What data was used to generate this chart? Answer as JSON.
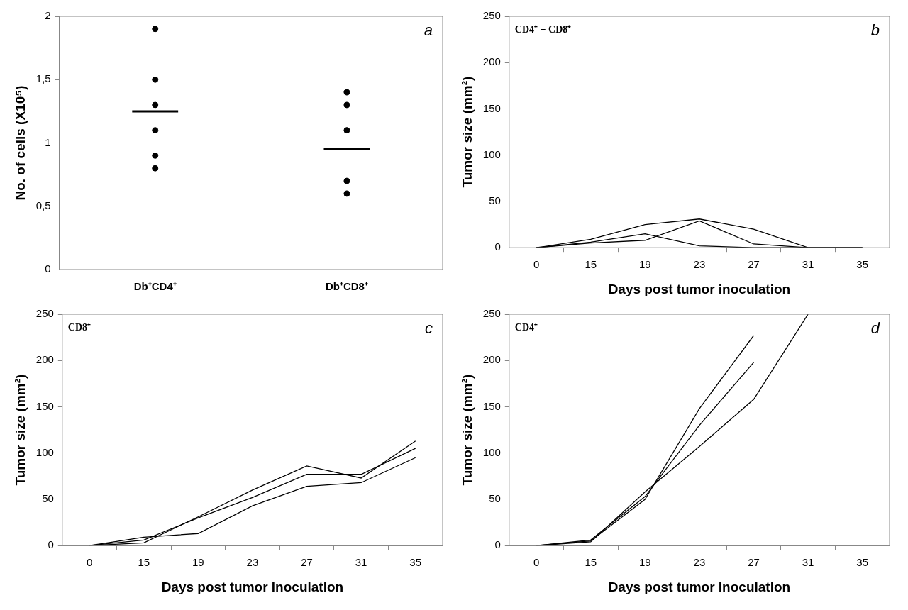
{
  "chart_data": [
    {
      "type": "scatter",
      "ylabel": "No. of cells (X10⁵)",
      "categories": [
        "Db⁺CD4⁺",
        "Db⁺CD8⁺"
      ],
      "ylim": [
        0,
        2
      ],
      "yticks": [
        0,
        {
          "value": 0.5,
          "label": "0,5"
        },
        1,
        {
          "value": 1.5,
          "label": "1,5"
        },
        2
      ],
      "annotations": [
        "a"
      ],
      "series": [
        {
          "type": "scatter",
          "marker": "circle",
          "color": "#000000",
          "x": [
            "Db⁺CD4⁺",
            "Db⁺CD4⁺",
            "Db⁺CD4⁺",
            "Db⁺CD4⁺",
            "Db⁺CD4⁺",
            "Db⁺CD4⁺",
            "Db⁺CD8⁺",
            "Db⁺CD8⁺",
            "Db⁺CD8⁺",
            "Db⁺CD8⁺",
            "Db⁺CD8⁺"
          ],
          "values": [
            1.9,
            1.5,
            1.3,
            1.1,
            0.9,
            0.8,
            1.4,
            1.3,
            1.1,
            0.7,
            0.6
          ]
        }
      ],
      "ref_lines": [
        {
          "axis": "y",
          "value": 1.25,
          "color": "#000000"
        },
        {
          "axis": "y",
          "value": 0.95,
          "color": "#000000"
        }
      ]
    },
    {
      "type": "line",
      "xlabel": "Days post tumor inoculation",
      "ylabel": "Tumor size (mm²)",
      "categories": [
        "0",
        "15",
        "19",
        "23",
        "27",
        "31",
        "35"
      ],
      "ylim": [
        0,
        250
      ],
      "yticks": [
        0,
        50,
        100,
        150,
        200,
        250
      ],
      "annotations": [
        "CD4⁺ + CD8⁺",
        "b"
      ],
      "marker": "none",
      "series": [
        {
          "color": "#000000",
          "values": [
            0,
            9,
            25,
            31,
            20,
            0,
            0
          ]
        },
        {
          "color": "#000000",
          "values": [
            0,
            6,
            15,
            2,
            0,
            0,
            0
          ]
        },
        {
          "color": "#000000",
          "values": [
            0,
            5,
            8,
            29,
            4,
            0,
            0
          ]
        }
      ]
    },
    {
      "type": "line",
      "xlabel": "Days post tumor inoculation",
      "ylabel": "Tumor size (mm²)",
      "categories": [
        "0",
        "15",
        "19",
        "23",
        "27",
        "31",
        "35"
      ],
      "ylim": [
        0,
        250
      ],
      "yticks": [
        0,
        50,
        100,
        150,
        200,
        250
      ],
      "annotations": [
        "CD8⁺",
        "c"
      ],
      "marker": "none",
      "series": [
        {
          "color": "#000000",
          "values": [
            0,
            3,
            31,
            60,
            86,
            73,
            113
          ]
        },
        {
          "color": "#000000",
          "values": [
            0,
            6,
            30,
            52,
            77,
            77,
            105
          ]
        },
        {
          "color": "#000000",
          "values": [
            0,
            9,
            13,
            43,
            64,
            68,
            95
          ]
        }
      ]
    },
    {
      "type": "line",
      "xlabel": "Days post tumor inoculation",
      "ylabel": "Tumor size (mm²)",
      "categories": [
        "0",
        "15",
        "19",
        "23",
        "27",
        "31",
        "35"
      ],
      "ylim": [
        0,
        250
      ],
      "yticks": [
        0,
        50,
        100,
        150,
        200,
        250
      ],
      "annotations": [
        "CD4⁺",
        "d"
      ],
      "marker": "none",
      "series": [
        {
          "color": "#000000",
          "values": [
            0,
            5,
            50,
            148,
            227,
            null,
            null
          ]
        },
        {
          "color": "#000000",
          "values": [
            0,
            6,
            53,
            130,
            198,
            null,
            null
          ]
        },
        {
          "color": "#000000",
          "values": [
            0,
            4,
            58,
            107,
            158,
            250,
            null
          ]
        }
      ]
    }
  ]
}
